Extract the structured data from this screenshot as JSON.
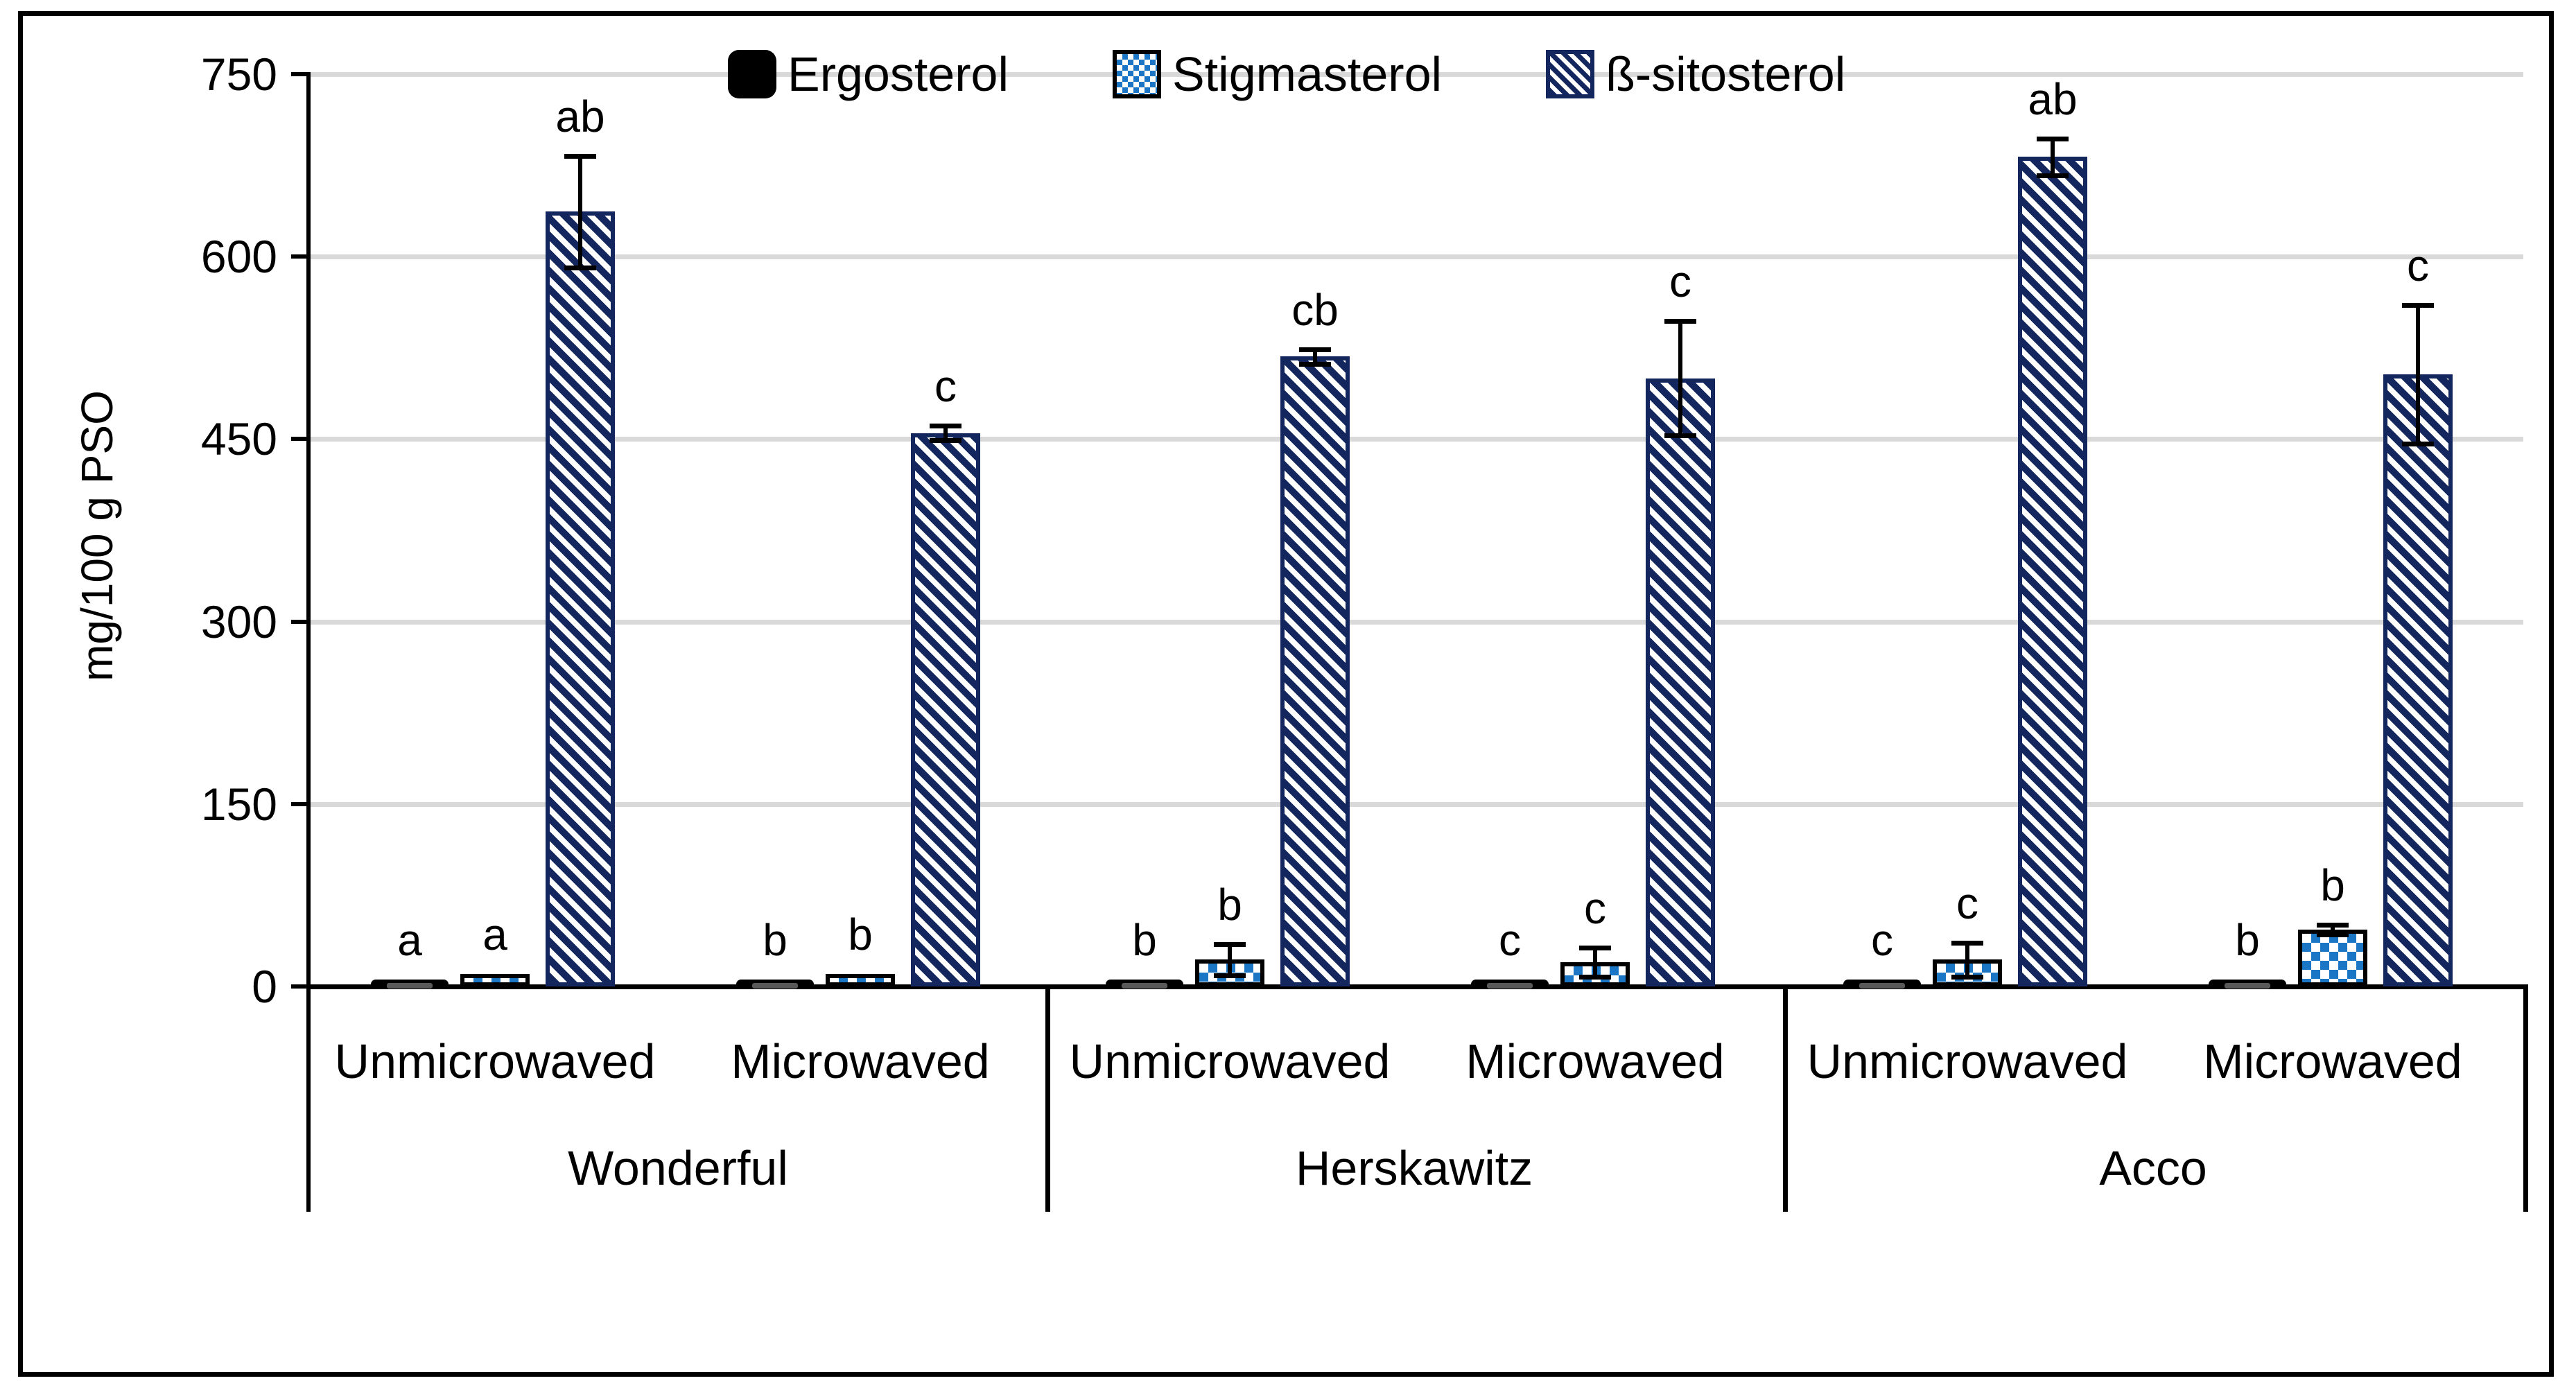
{
  "figure": {
    "background": "#ffffff",
    "border_color": "#000000"
  },
  "chart_data": {
    "type": "bar",
    "title": "",
    "ylabel": "mg/100 g PSO",
    "xlabel": "",
    "ylim": [
      0,
      750
    ],
    "yticks": [
      0,
      150,
      300,
      450,
      600,
      750
    ],
    "grid": true,
    "legend_position": "top-center",
    "series_names": [
      "Ergosterol",
      "Stigmasterol",
      "ß-sitosterol"
    ],
    "treatment_labels": [
      "Unmicrowaved",
      "Microwaved"
    ],
    "group_labels": [
      "Wonderful",
      "Herskawitz",
      "Acco"
    ],
    "colors": {
      "ergosterol": "#000000",
      "stigmasterol": "#1b76c6",
      "sitosterol": "#13265e",
      "gridline": "#d9d9d9",
      "error_dash": "#595959",
      "axis": "#000000"
    },
    "groups": [
      {
        "variety": "Wonderful",
        "treatments": [
          {
            "label": "Unmicrowaved",
            "bars": [
              {
                "series": "Ergosterol",
                "value": 7,
                "error": 0,
                "letter": "a"
              },
              {
                "series": "Stigmasterol",
                "value": 10,
                "error": 0,
                "letter": "a"
              },
              {
                "series": "ß-sitosterol",
                "value": 637,
                "error": 46,
                "letter": "ab"
              }
            ]
          },
          {
            "label": "Microwaved",
            "bars": [
              {
                "series": "Ergosterol",
                "value": 7,
                "error": 0,
                "letter": "b"
              },
              {
                "series": "Stigmasterol",
                "value": 10,
                "error": 0,
                "letter": "b"
              },
              {
                "series": "ß-sitosterol",
                "value": 455,
                "error": 6,
                "letter": "c"
              }
            ]
          }
        ]
      },
      {
        "variety": "Herskawitz",
        "treatments": [
          {
            "label": "Unmicrowaved",
            "bars": [
              {
                "series": "Ergosterol",
                "value": 7,
                "error": 0,
                "letter": "b"
              },
              {
                "series": "Stigmasterol",
                "value": 22,
                "error": 13,
                "letter": "b"
              },
              {
                "series": "ß-sitosterol",
                "value": 518,
                "error": 6,
                "letter": "cb"
              }
            ]
          },
          {
            "label": "Microwaved",
            "bars": [
              {
                "series": "Ergosterol",
                "value": 6,
                "error": 0,
                "letter": "c"
              },
              {
                "series": "Stigmasterol",
                "value": 20,
                "error": 12,
                "letter": "c"
              },
              {
                "series": "ß-sitosterol",
                "value": 500,
                "error": 47,
                "letter": "c"
              }
            ]
          }
        ]
      },
      {
        "variety": "Acco",
        "treatments": [
          {
            "label": "Unmicrowaved",
            "bars": [
              {
                "series": "Ergosterol",
                "value": 7,
                "error": 0,
                "letter": "c"
              },
              {
                "series": "Stigmasterol",
                "value": 22,
                "error": 14,
                "letter": "c"
              },
              {
                "series": "ß-sitosterol",
                "value": 682,
                "error": 15,
                "letter": "ab"
              }
            ]
          },
          {
            "label": "Microwaved",
            "bars": [
              {
                "series": "Ergosterol",
                "value": 7,
                "error": 0,
                "letter": "b"
              },
              {
                "series": "Stigmasterol",
                "value": 47,
                "error": 4,
                "letter": "b"
              },
              {
                "series": "ß-sitosterol",
                "value": 503,
                "error": 57,
                "letter": "c"
              }
            ]
          }
        ]
      }
    ]
  }
}
